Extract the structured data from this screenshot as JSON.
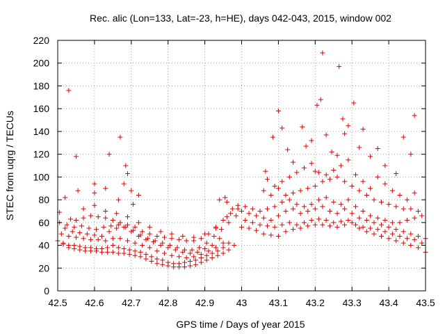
{
  "chart_data": {
    "type": "scatter",
    "title": "Rec. alic (Lon=133, Lat=-23, h=HE), days 042-043, 2015, window 002",
    "xlabel": "GPS time / Days of year 2015",
    "ylabel": "STEC from uqrg / TECUs",
    "xlim": [
      42.5,
      43.5
    ],
    "ylim": [
      0,
      220
    ],
    "xticks": [
      "42.5",
      "42.6",
      "42.7",
      "42.8",
      "42.9",
      "43",
      "43.1",
      "43.2",
      "43.3",
      "43.4",
      "43.5"
    ],
    "yticks": [
      "0",
      "20",
      "40",
      "60",
      "80",
      "100",
      "120",
      "140",
      "160",
      "180",
      "200",
      "220"
    ],
    "grid": true,
    "marker": "+",
    "color": "#e00000",
    "series": [
      {
        "x": [
          42.515,
          42.53,
          42.545,
          42.56,
          42.575,
          42.59,
          42.605,
          42.62,
          42.635,
          42.65,
          42.665,
          42.68,
          42.695,
          42.71,
          42.725,
          42.74,
          42.755,
          42.77,
          42.785,
          42.8,
          42.815,
          42.83,
          42.845,
          42.86,
          42.875,
          42.89,
          42.905,
          42.92,
          42.935,
          42.95,
          42.965,
          42.98
        ],
        "y": [
          41,
          38,
          37,
          36,
          35,
          35,
          35,
          34,
          34,
          34,
          33,
          33,
          32,
          31,
          30,
          28,
          26,
          24,
          23,
          22,
          21,
          21,
          21,
          22,
          23,
          25,
          27,
          29,
          31,
          33,
          36,
          40
        ]
      },
      {
        "x": [
          42.5,
          42.515,
          42.53,
          42.545,
          42.56,
          42.575,
          42.59,
          42.605,
          42.62,
          42.635,
          42.65,
          42.665,
          42.68,
          42.695,
          42.71,
          42.725,
          42.74,
          42.755,
          42.77,
          42.785,
          42.8,
          42.815,
          42.83,
          42.845,
          42.86,
          42.875,
          42.89,
          42.905,
          42.92,
          42.935,
          42.95,
          42.965
        ],
        "y": [
          44,
          42,
          40,
          40,
          39,
          38,
          38,
          37,
          37,
          38,
          40,
          38,
          37,
          36,
          35,
          34,
          32,
          30,
          28,
          27,
          25,
          24,
          24,
          25,
          26,
          27,
          29,
          31,
          33,
          35,
          38,
          42
        ]
      },
      {
        "x": [
          42.51,
          42.53,
          42.55,
          42.57,
          42.59,
          42.61,
          42.63,
          42.65,
          42.67,
          42.69,
          42.71,
          42.73,
          42.75,
          42.77,
          42.79,
          42.81,
          42.83,
          42.85,
          42.87,
          42.89,
          42.91,
          42.93,
          42.95
        ],
        "y": [
          50,
          48,
          47,
          46,
          45,
          45,
          44,
          46,
          46,
          44,
          42,
          40,
          38,
          35,
          33,
          31,
          30,
          29,
          30,
          32,
          35,
          38,
          42
        ]
      },
      {
        "x": [
          42.52,
          42.54,
          42.56,
          42.58,
          42.6,
          42.62,
          42.64,
          42.66,
          42.68,
          42.7,
          42.72,
          42.74,
          42.76,
          42.78,
          42.8,
          42.82,
          42.84,
          42.86,
          42.88,
          42.9,
          42.92,
          42.94
        ],
        "y": [
          55,
          52,
          51,
          50,
          49,
          48,
          52,
          55,
          56,
          52,
          48,
          45,
          43,
          40,
          38,
          36,
          34,
          33,
          34,
          37,
          40,
          46
        ]
      },
      {
        "x": [
          42.505,
          42.525,
          42.545,
          42.565,
          42.585,
          42.605,
          42.625,
          42.645,
          42.665,
          42.685,
          42.705,
          42.725,
          42.745,
          42.765,
          42.785,
          42.805,
          42.825,
          42.845,
          42.865,
          42.885,
          42.905,
          42.925,
          42.945,
          42.965,
          42.985
        ],
        "y": [
          60,
          58,
          56,
          57,
          55,
          54,
          56,
          57,
          58,
          56,
          53,
          49,
          46,
          44,
          42,
          40,
          38,
          36,
          36,
          38,
          42,
          48,
          54,
          60,
          66
        ]
      },
      {
        "x": [
          42.55,
          42.57,
          42.59,
          42.61,
          42.63,
          42.65,
          42.67,
          42.69,
          42.71,
          42.73,
          42.75,
          42.77,
          42.79,
          42.81,
          42.83,
          42.85,
          42.87,
          42.89,
          42.91,
          42.93,
          42.95,
          42.97,
          42.99
        ],
        "y": [
          62,
          64,
          66,
          65,
          64,
          62,
          60,
          58,
          56,
          52,
          50,
          48,
          47,
          46,
          45,
          44,
          44,
          46,
          50,
          56,
          62,
          68,
          72
        ]
      },
      {
        "x": [
          42.57,
          42.6,
          42.63,
          42.66,
          42.69,
          42.72,
          42.75,
          42.78,
          42.81,
          42.84,
          42.87,
          42.9,
          42.93,
          42.96,
          42.99
        ],
        "y": [
          72,
          75,
          70,
          68,
          65,
          60,
          56,
          52,
          50,
          48,
          47,
          50,
          55,
          65,
          75
        ]
      },
      {
        "x": [
          42.6,
          42.63,
          42.665,
          42.68,
          42.7,
          42.72,
          42.94,
          42.96
        ],
        "y": [
          86,
          90,
          80,
          94,
          88,
          84,
          80,
          78
        ]
      },
      {
        "x": [
          42.505,
          42.52,
          42.535,
          42.55,
          42.6,
          42.64,
          42.67,
          42.685,
          42.69,
          42.705,
          42.955,
          42.975
        ],
        "y": [
          69,
          82,
          63,
          118,
          94,
          120,
          135,
          110,
          103,
          76,
          82,
          72
        ]
      },
      {
        "x": [
          42.53,
          42.555
        ],
        "y": [
          176,
          88
        ]
      },
      {
        "x": [
          43.0,
          43.02,
          43.04,
          43.06,
          43.08,
          43.1,
          43.12,
          43.14,
          43.16,
          43.18,
          43.2,
          43.22,
          43.24,
          43.26,
          43.28,
          43.3,
          43.32,
          43.34,
          43.36,
          43.38,
          43.4,
          43.42,
          43.44,
          43.46,
          43.48,
          43.5
        ],
        "y": [
          56,
          55,
          53,
          50,
          49,
          48,
          52,
          54,
          55,
          57,
          58,
          58,
          57,
          56,
          58,
          60,
          55,
          52,
          50,
          48,
          46,
          44,
          42,
          40,
          38,
          34
        ]
      },
      {
        "x": [
          43.01,
          43.03,
          43.05,
          43.07,
          43.09,
          43.11,
          43.13,
          43.15,
          43.17,
          43.19,
          43.21,
          43.23,
          43.25,
          43.27,
          43.29,
          43.31,
          43.33,
          43.35,
          43.37,
          43.39,
          43.41,
          43.43,
          43.45,
          43.47,
          43.49
        ],
        "y": [
          62,
          60,
          58,
          57,
          56,
          58,
          60,
          58,
          60,
          62,
          63,
          62,
          60,
          61,
          62,
          58,
          56,
          55,
          54,
          52,
          50,
          48,
          46,
          45,
          42
        ]
      },
      {
        "x": [
          43.0,
          43.02,
          43.04,
          43.06,
          43.08,
          43.1,
          43.12,
          43.14,
          43.16,
          43.18,
          43.2,
          43.22,
          43.24,
          43.26,
          43.28,
          43.3,
          43.32,
          43.34,
          43.36,
          43.38,
          43.4,
          43.42,
          43.44,
          43.46,
          43.48,
          43.5
        ],
        "y": [
          70,
          68,
          66,
          64,
          62,
          66,
          70,
          72,
          68,
          70,
          72,
          74,
          70,
          68,
          72,
          68,
          64,
          62,
          60,
          58,
          56,
          54,
          52,
          50,
          48,
          46
        ]
      },
      {
        "x": [
          43.01,
          43.03,
          43.05,
          43.07,
          43.09,
          43.11,
          43.13,
          43.15,
          43.17,
          43.19,
          43.21,
          43.23,
          43.25,
          43.27,
          43.29,
          43.31,
          43.33,
          43.35,
          43.37,
          43.39,
          43.41,
          43.43,
          43.45,
          43.47,
          43.49
        ],
        "y": [
          74,
          72,
          70,
          72,
          74,
          78,
          80,
          76,
          74,
          76,
          80,
          82,
          78,
          76,
          80,
          74,
          70,
          66,
          64,
          62,
          60,
          60,
          62,
          64,
          66
        ]
      },
      {
        "x": [
          43.06,
          43.08,
          43.1,
          43.12,
          43.14,
          43.16,
          43.18,
          43.2,
          43.22,
          43.24,
          43.26,
          43.28,
          43.3,
          43.32,
          43.34,
          43.36,
          43.38,
          43.4,
          43.42,
          43.44,
          43.46,
          43.48
        ],
        "y": [
          88,
          84,
          90,
          84,
          86,
          88,
          90,
          92,
          96,
          98,
          100,
          96,
          92,
          88,
          84,
          80,
          78,
          76,
          74,
          72,
          72,
          70
        ]
      },
      {
        "x": [
          43.07,
          43.09,
          43.11,
          43.13,
          43.15,
          43.17,
          43.19,
          43.21,
          43.23,
          43.25,
          43.27,
          43.29,
          43.31,
          43.33,
          43.35,
          43.37,
          43.39,
          43.41,
          43.43,
          43.45,
          43.47
        ],
        "y": [
          98,
          92,
          96,
          100,
          104,
          108,
          112,
          104,
          102,
          106,
          110,
          115,
          102,
          96,
          90,
          100,
          94,
          88,
          84,
          80,
          86
        ]
      },
      {
        "x": [
          43.065,
          43.085,
          43.1,
          43.11,
          43.125,
          43.14,
          43.165,
          43.175,
          43.19,
          43.2,
          43.205,
          43.215,
          43.23,
          43.245,
          43.26,
          43.265,
          43.275,
          43.28,
          43.29,
          43.305,
          43.32,
          43.33,
          43.35,
          43.37,
          43.39,
          43.42,
          43.44,
          43.46,
          43.47
        ],
        "y": [
          105,
          135,
          158,
          143,
          124,
          113,
          144,
          127,
          132,
          105,
          163,
          168,
          137,
          122,
          119,
          197,
          151,
          138,
          145,
          165,
          126,
          142,
          118,
          125,
          110,
          103,
          135,
          120,
          154
        ]
      },
      {
        "x": [
          43.22
        ],
        "y": [
          209
        ]
      }
    ]
  }
}
